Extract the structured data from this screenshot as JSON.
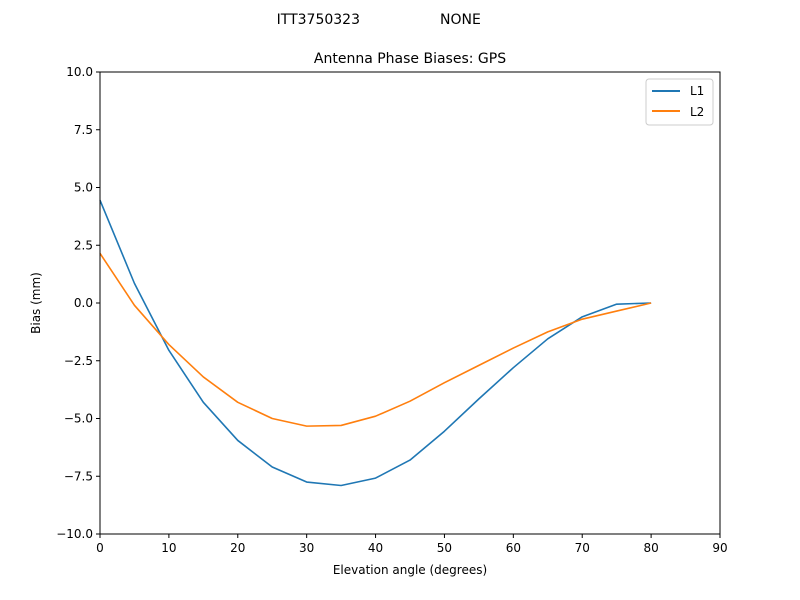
{
  "figure": {
    "suptitle_left": "ITT3750323",
    "suptitle_right": "NONE"
  },
  "chart_data": {
    "type": "line",
    "title": "Antenna Phase Biases: GPS",
    "xlabel": "Elevation angle (degrees)",
    "ylabel": "Bias (mm)",
    "xlim": [
      0,
      90
    ],
    "ylim": [
      -10,
      10
    ],
    "xticks": [
      0,
      10,
      20,
      30,
      40,
      50,
      60,
      70,
      80,
      90
    ],
    "yticks": [
      -10.0,
      -7.5,
      -5.0,
      -2.5,
      0.0,
      2.5,
      5.0,
      7.5,
      10.0
    ],
    "xtick_labels": [
      "0",
      "10",
      "20",
      "30",
      "40",
      "50",
      "60",
      "70",
      "80",
      "90"
    ],
    "ytick_labels": [
      "−10.0",
      "−7.5",
      "−5.0",
      "−2.5",
      "0.0",
      "2.5",
      "5.0",
      "7.5",
      "10.0"
    ],
    "grid": false,
    "legend_position": "top-right",
    "x": [
      0,
      5,
      10,
      15,
      20,
      25,
      30,
      35,
      40,
      45,
      50,
      55,
      60,
      65,
      70,
      75,
      80
    ],
    "series": [
      {
        "name": "L1",
        "color": "#1f77b4",
        "values": [
          4.45,
          0.85,
          -2.05,
          -4.3,
          -5.95,
          -7.1,
          -7.75,
          -7.9,
          -7.58,
          -6.8,
          -5.55,
          -4.15,
          -2.8,
          -1.55,
          -0.6,
          -0.05,
          0.0
        ]
      },
      {
        "name": "L2",
        "color": "#ff7f0e",
        "values": [
          2.15,
          -0.1,
          -1.8,
          -3.2,
          -4.3,
          -5.0,
          -5.33,
          -5.3,
          -4.9,
          -4.25,
          -3.45,
          -2.7,
          -1.95,
          -1.25,
          -0.7,
          -0.35,
          0.0
        ]
      }
    ]
  }
}
